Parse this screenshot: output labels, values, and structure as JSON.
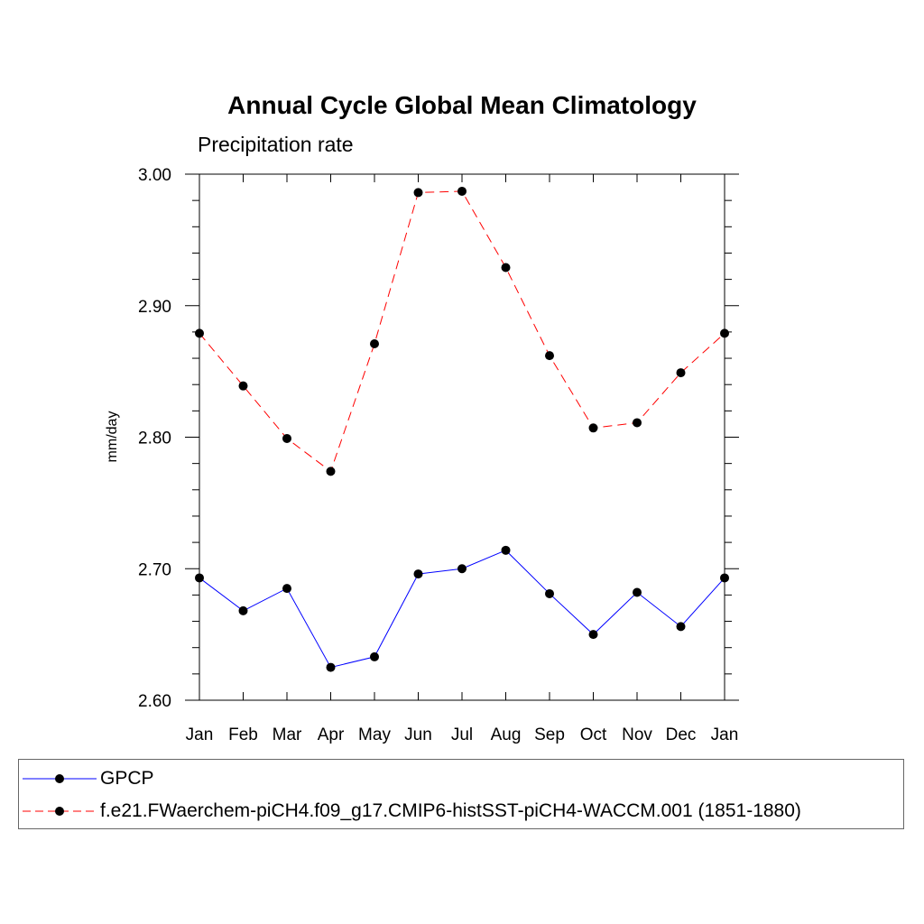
{
  "chart_data": {
    "type": "line",
    "title": "Annual Cycle Global Mean Climatology",
    "subtitle": "Precipitation rate",
    "xlabel": "",
    "ylabel": "mm/day",
    "categories": [
      "Jan",
      "Feb",
      "Mar",
      "Apr",
      "May",
      "Jun",
      "Jul",
      "Aug",
      "Sep",
      "Oct",
      "Nov",
      "Dec",
      "Jan"
    ],
    "ylim": [
      2.6,
      3.0
    ],
    "yticks": [
      "2.60",
      "2.70",
      "2.80",
      "2.90",
      "3.00"
    ],
    "grid": false,
    "legend_position": "bottom",
    "series": [
      {
        "name": "GPCP",
        "color": "#0000ff",
        "line_style": "solid",
        "marker": "filled-circle",
        "values": [
          2.693,
          2.668,
          2.685,
          2.625,
          2.633,
          2.696,
          2.7,
          2.714,
          2.681,
          2.65,
          2.682,
          2.656,
          2.693
        ]
      },
      {
        "name": "f.e21.FWaerchem-piCH4.f09_g17.CMIP6-histSST-piCH4-WACCM.001 (1851-1880)",
        "color": "#ff0000",
        "line_style": "dashed",
        "marker": "filled-circle",
        "values": [
          2.879,
          2.839,
          2.799,
          2.774,
          2.871,
          2.986,
          2.987,
          2.929,
          2.862,
          2.807,
          2.811,
          2.849,
          2.879
        ]
      }
    ]
  }
}
